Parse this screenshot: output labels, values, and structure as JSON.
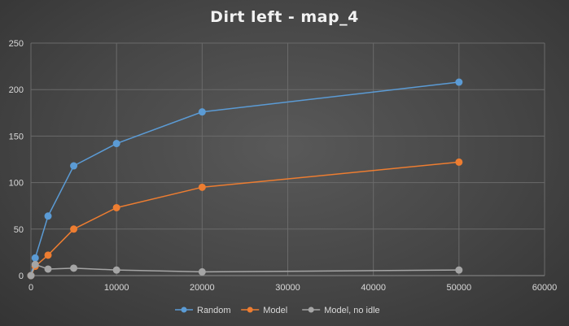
{
  "chart_data": {
    "type": "line",
    "title": "Dirt left - map_4",
    "xlabel": "",
    "ylabel": "",
    "xlim": [
      0,
      60000
    ],
    "ylim": [
      0,
      250
    ],
    "x_ticks": [
      0,
      10000,
      20000,
      30000,
      40000,
      50000,
      60000
    ],
    "y_ticks": [
      0,
      50,
      100,
      150,
      200,
      250
    ],
    "grid": true,
    "legend_position": "bottom",
    "series": [
      {
        "name": "Random",
        "color": "#5b9bd5",
        "x": [
          0,
          500,
          2000,
          5000,
          10000,
          20000,
          50000
        ],
        "y": [
          0,
          19,
          64,
          118,
          142,
          176,
          208
        ]
      },
      {
        "name": "Model",
        "color": "#ed7d31",
        "x": [
          0,
          500,
          2000,
          5000,
          10000,
          20000,
          50000
        ],
        "y": [
          0,
          10,
          22,
          50,
          73,
          95,
          122
        ]
      },
      {
        "name": "Model, no idle",
        "color": "#a5a5a5",
        "x": [
          0,
          500,
          2000,
          5000,
          10000,
          20000,
          50000
        ],
        "y": [
          0,
          12,
          7,
          8,
          6,
          4,
          6
        ]
      }
    ]
  }
}
